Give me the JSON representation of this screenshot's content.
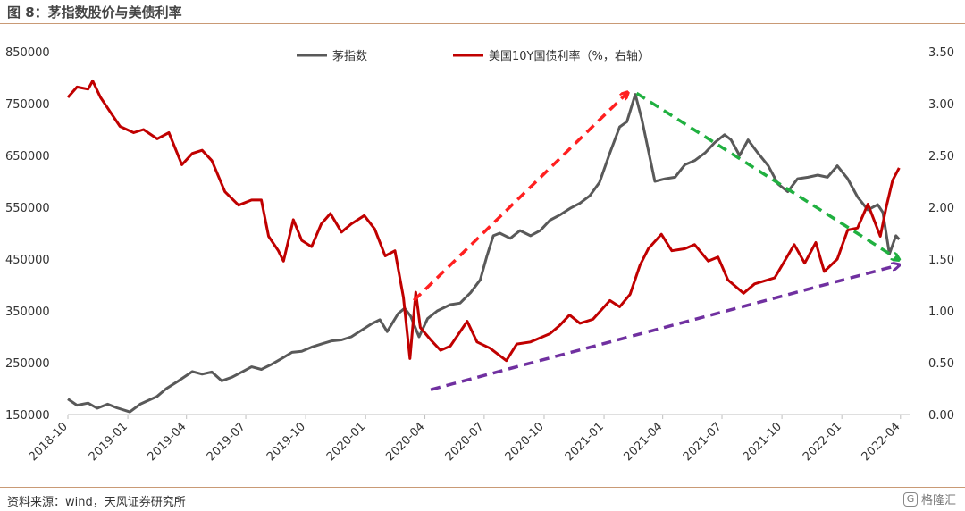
{
  "header": {
    "title": "图 8：茅指数股价与美债利率"
  },
  "footer": {
    "source": "资料来源：wind，天风证券研究所",
    "watermark": "格隆汇"
  },
  "chart_data": {
    "type": "line",
    "x_tick_labels": [
      "2018-10",
      "2019-01",
      "2019-04",
      "2019-07",
      "2019-10",
      "2020-01",
      "2020-04",
      "2020-07",
      "2020-10",
      "2021-01",
      "2021-04",
      "2021-07",
      "2021-10",
      "2022-01",
      "2022-04"
    ],
    "x_range": [
      "2018-10-01",
      "2022-04-15"
    ],
    "y_left": {
      "ticks": [
        "150000",
        "250000",
        "350000",
        "450000",
        "550000",
        "650000",
        "750000",
        "850000"
      ],
      "range": [
        150000,
        850000
      ]
    },
    "y_right": {
      "ticks": [
        "0.00",
        "0.50",
        "1.00",
        "1.50",
        "2.00",
        "2.50",
        "3.00",
        "3.50"
      ],
      "range": [
        0,
        3.5
      ]
    },
    "legend_position": "top-center",
    "series": [
      {
        "name": "茅指数",
        "axis": "left",
        "color": "#595959",
        "points": [
          [
            "2018-10-01",
            180000
          ],
          [
            "2018-10-15",
            168000
          ],
          [
            "2018-11-01",
            172000
          ],
          [
            "2018-11-15",
            162000
          ],
          [
            "2018-12-01",
            170000
          ],
          [
            "2018-12-15",
            163000
          ],
          [
            "2019-01-04",
            155000
          ],
          [
            "2019-01-20",
            170000
          ],
          [
            "2019-02-15",
            185000
          ],
          [
            "2019-03-01",
            200000
          ],
          [
            "2019-03-20",
            215000
          ],
          [
            "2019-04-10",
            233000
          ],
          [
            "2019-04-25",
            228000
          ],
          [
            "2019-05-10",
            232000
          ],
          [
            "2019-05-25",
            215000
          ],
          [
            "2019-06-10",
            222000
          ],
          [
            "2019-06-25",
            232000
          ],
          [
            "2019-07-10",
            242000
          ],
          [
            "2019-07-25",
            237000
          ],
          [
            "2019-08-10",
            247000
          ],
          [
            "2019-08-25",
            258000
          ],
          [
            "2019-09-10",
            270000
          ],
          [
            "2019-09-25",
            272000
          ],
          [
            "2019-10-10",
            280000
          ],
          [
            "2019-10-25",
            286000
          ],
          [
            "2019-11-10",
            292000
          ],
          [
            "2019-11-25",
            294000
          ],
          [
            "2019-12-10",
            300000
          ],
          [
            "2019-12-25",
            312000
          ],
          [
            "2020-01-10",
            325000
          ],
          [
            "2020-01-23",
            333000
          ],
          [
            "2020-02-03",
            310000
          ],
          [
            "2020-02-20",
            345000
          ],
          [
            "2020-03-01",
            355000
          ],
          [
            "2020-03-10",
            340000
          ],
          [
            "2020-03-23",
            300000
          ],
          [
            "2020-04-05",
            335000
          ],
          [
            "2020-04-20",
            350000
          ],
          [
            "2020-05-10",
            362000
          ],
          [
            "2020-05-25",
            365000
          ],
          [
            "2020-06-10",
            385000
          ],
          [
            "2020-06-25",
            410000
          ],
          [
            "2020-07-05",
            455000
          ],
          [
            "2020-07-15",
            495000
          ],
          [
            "2020-07-25",
            500000
          ],
          [
            "2020-08-10",
            490000
          ],
          [
            "2020-08-25",
            505000
          ],
          [
            "2020-09-10",
            495000
          ],
          [
            "2020-09-25",
            505000
          ],
          [
            "2020-10-10",
            525000
          ],
          [
            "2020-10-25",
            535000
          ],
          [
            "2020-11-10",
            548000
          ],
          [
            "2020-11-25",
            558000
          ],
          [
            "2020-12-10",
            572000
          ],
          [
            "2020-12-25",
            598000
          ],
          [
            "2021-01-10",
            655000
          ],
          [
            "2021-01-25",
            705000
          ],
          [
            "2021-02-05",
            715000
          ],
          [
            "2021-02-18",
            768000
          ],
          [
            "2021-02-28",
            720000
          ],
          [
            "2021-03-10",
            660000
          ],
          [
            "2021-03-20",
            600000
          ],
          [
            "2021-04-05",
            605000
          ],
          [
            "2021-04-20",
            608000
          ],
          [
            "2021-05-05",
            632000
          ],
          [
            "2021-05-20",
            640000
          ],
          [
            "2021-06-05",
            655000
          ],
          [
            "2021-06-20",
            675000
          ],
          [
            "2021-07-05",
            690000
          ],
          [
            "2021-07-15",
            680000
          ],
          [
            "2021-07-28",
            650000
          ],
          [
            "2021-08-10",
            680000
          ],
          [
            "2021-08-25",
            655000
          ],
          [
            "2021-09-10",
            630000
          ],
          [
            "2021-09-25",
            595000
          ],
          [
            "2021-10-10",
            580000
          ],
          [
            "2021-10-25",
            605000
          ],
          [
            "2021-11-10",
            608000
          ],
          [
            "2021-11-25",
            612000
          ],
          [
            "2021-12-10",
            608000
          ],
          [
            "2021-12-25",
            630000
          ],
          [
            "2022-01-10",
            605000
          ],
          [
            "2022-01-25",
            570000
          ],
          [
            "2022-02-10",
            545000
          ],
          [
            "2022-02-25",
            555000
          ],
          [
            "2022-03-05",
            540000
          ],
          [
            "2022-03-15",
            460000
          ],
          [
            "2022-03-25",
            495000
          ],
          [
            "2022-03-30",
            488000
          ]
        ]
      },
      {
        "name": "美国10Y国债利率（%，右轴）",
        "axis": "right",
        "color": "#c00000",
        "points": [
          [
            "2018-10-01",
            3.06
          ],
          [
            "2018-10-15",
            3.16
          ],
          [
            "2018-11-01",
            3.14
          ],
          [
            "2018-11-08",
            3.22
          ],
          [
            "2018-11-20",
            3.06
          ],
          [
            "2018-12-05",
            2.92
          ],
          [
            "2018-12-20",
            2.78
          ],
          [
            "2019-01-10",
            2.72
          ],
          [
            "2019-01-25",
            2.75
          ],
          [
            "2019-02-15",
            2.66
          ],
          [
            "2019-03-05",
            2.72
          ],
          [
            "2019-03-25",
            2.41
          ],
          [
            "2019-04-10",
            2.52
          ],
          [
            "2019-04-25",
            2.55
          ],
          [
            "2019-05-10",
            2.45
          ],
          [
            "2019-05-30",
            2.15
          ],
          [
            "2019-06-20",
            2.02
          ],
          [
            "2019-07-10",
            2.07
          ],
          [
            "2019-07-25",
            2.07
          ],
          [
            "2019-08-05",
            1.72
          ],
          [
            "2019-08-20",
            1.58
          ],
          [
            "2019-08-28",
            1.48
          ],
          [
            "2019-09-12",
            1.88
          ],
          [
            "2019-09-25",
            1.68
          ],
          [
            "2019-10-10",
            1.62
          ],
          [
            "2019-10-25",
            1.84
          ],
          [
            "2019-11-08",
            1.94
          ],
          [
            "2019-11-25",
            1.76
          ],
          [
            "2019-12-10",
            1.84
          ],
          [
            "2019-12-30",
            1.92
          ],
          [
            "2020-01-15",
            1.79
          ],
          [
            "2020-01-31",
            1.53
          ],
          [
            "2020-02-15",
            1.58
          ],
          [
            "2020-02-28",
            1.13
          ],
          [
            "2020-03-09",
            0.54
          ],
          [
            "2020-03-18",
            1.18
          ],
          [
            "2020-03-25",
            0.84
          ],
          [
            "2020-04-10",
            0.72
          ],
          [
            "2020-04-25",
            0.62
          ],
          [
            "2020-05-10",
            0.66
          ],
          [
            "2020-06-05",
            0.9
          ],
          [
            "2020-06-20",
            0.7
          ],
          [
            "2020-07-10",
            0.64
          ],
          [
            "2020-08-04",
            0.52
          ],
          [
            "2020-08-20",
            0.68
          ],
          [
            "2020-09-10",
            0.7
          ],
          [
            "2020-10-10",
            0.78
          ],
          [
            "2020-10-25",
            0.86
          ],
          [
            "2020-11-09",
            0.96
          ],
          [
            "2020-11-25",
            0.88
          ],
          [
            "2020-12-15",
            0.92
          ],
          [
            "2021-01-10",
            1.1
          ],
          [
            "2021-01-25",
            1.04
          ],
          [
            "2021-02-10",
            1.16
          ],
          [
            "2021-02-25",
            1.44
          ],
          [
            "2021-03-10",
            1.6
          ],
          [
            "2021-03-30",
            1.74
          ],
          [
            "2021-04-15",
            1.58
          ],
          [
            "2021-05-05",
            1.6
          ],
          [
            "2021-05-20",
            1.64
          ],
          [
            "2021-06-10",
            1.48
          ],
          [
            "2021-06-25",
            1.52
          ],
          [
            "2021-07-10",
            1.3
          ],
          [
            "2021-08-03",
            1.17
          ],
          [
            "2021-08-20",
            1.26
          ],
          [
            "2021-09-20",
            1.32
          ],
          [
            "2021-10-20",
            1.64
          ],
          [
            "2021-11-05",
            1.46
          ],
          [
            "2021-11-22",
            1.66
          ],
          [
            "2021-12-05",
            1.38
          ],
          [
            "2021-12-25",
            1.5
          ],
          [
            "2022-01-10",
            1.78
          ],
          [
            "2022-01-25",
            1.8
          ],
          [
            "2022-02-10",
            2.03
          ],
          [
            "2022-03-01",
            1.72
          ],
          [
            "2022-03-10",
            2.0
          ],
          [
            "2022-03-20",
            2.26
          ],
          [
            "2022-03-30",
            2.38
          ]
        ]
      }
    ]
  },
  "legend": {
    "items": [
      "茅指数",
      "美国10Y国债利率（%，右轴）"
    ]
  },
  "annotations": [
    {
      "kind": "trend-arrow",
      "color": "#ff2020",
      "from": [
        "2020-03-15",
        1.1
      ],
      "to": [
        "2021-02-05",
        3.1
      ]
    },
    {
      "kind": "trend-arrow",
      "color": "#20b040",
      "from": [
        "2021-02-20",
        3.1
      ],
      "to": [
        "2022-03-28",
        1.5
      ]
    },
    {
      "kind": "trend-arrow",
      "color": "#7030a0",
      "from": [
        "2020-04-10",
        0.24
      ],
      "to": [
        "2022-03-28",
        1.44
      ]
    }
  ]
}
